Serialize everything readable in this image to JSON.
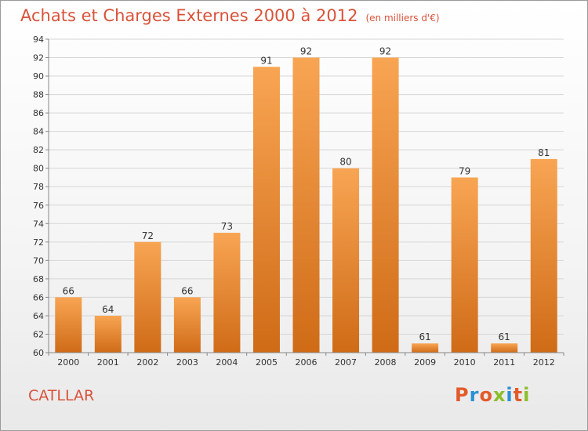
{
  "header": {
    "title": "Achats et Charges Externes 2000 à 2012",
    "subtitle": "(en milliers d'€)"
  },
  "footer": {
    "commune": "CATLLAR",
    "brand": "Proxiti"
  },
  "colors": {
    "title": "#d9523a",
    "bar_top": "#f8a553",
    "bar_bottom": "#cf6b17",
    "logo": [
      "#e35a2a",
      "#2a8fd6",
      "#e35a2a",
      "#8bbf2a",
      "#2a8fd6",
      "#e35a2a",
      "#8bbf2a"
    ]
  },
  "chart_data": {
    "type": "bar",
    "title": "Achats et Charges Externes 2000 à 2012",
    "categories": [
      "2000",
      "2001",
      "2002",
      "2003",
      "2004",
      "2005",
      "2006",
      "2007",
      "2008",
      "2009",
      "2010",
      "2011",
      "2012"
    ],
    "values": [
      66,
      64,
      72,
      66,
      73,
      91,
      92,
      80,
      92,
      61,
      79,
      61,
      81
    ],
    "ylim": [
      60,
      94
    ],
    "yticks": [
      60,
      62,
      64,
      66,
      68,
      70,
      72,
      74,
      76,
      78,
      80,
      82,
      84,
      86,
      88,
      90,
      92,
      94
    ],
    "grid": true,
    "xlabel": "",
    "ylabel": ""
  }
}
